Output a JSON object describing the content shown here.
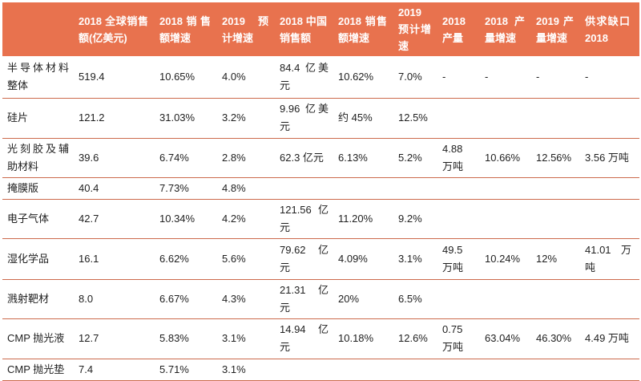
{
  "page": {
    "background": "#ffffff",
    "accent_color": "#e8724e",
    "separator_color": "#cc6a4c",
    "header_text_color": "#ffffff",
    "body_text_color": "#1f1f1f"
  },
  "table": {
    "columns": [
      "",
      "2018 全球销售额(亿美元)",
      "2018销售额增速",
      "2019 预计增速",
      "2018 中国销售额",
      "2018 销售额增速",
      "2019 预计增速",
      "2018 产量",
      "2018 产量增速",
      "2019产量增速",
      "供求缺口 2018"
    ],
    "rows": [
      {
        "label": "半导体材料整体",
        "cells": [
          "519.4",
          "10.65%",
          "4.0%",
          "84.4 亿美元",
          "10.62%",
          "7.0%",
          "-",
          "-",
          "-",
          "-"
        ]
      },
      {
        "label": "硅片",
        "cells": [
          "121.2",
          "31.03%",
          "3.2%",
          "9.96 亿美元",
          "约 45%",
          "12.5%",
          "",
          "",
          "",
          ""
        ]
      },
      {
        "label": "光刻胶及辅助材料",
        "cells": [
          "39.6",
          "6.74%",
          "2.8%",
          "62.3 亿元",
          "6.13%",
          "5.2%",
          "4.88 万吨",
          "10.66%",
          "12.56%",
          "3.56 万吨"
        ]
      },
      {
        "label": "掩膜版",
        "cells": [
          "40.4",
          "7.73%",
          "4.8%",
          "",
          "",
          "",
          "",
          "",
          "",
          ""
        ]
      },
      {
        "label": "电子气体",
        "cells": [
          "42.7",
          "10.34%",
          "4.2%",
          "121.56 亿元",
          "11.20%",
          "9.2%",
          "",
          "",
          "",
          ""
        ]
      },
      {
        "label": "湿化学品",
        "cells": [
          "16.1",
          "6.62%",
          "5.6%",
          "79.62 亿元",
          "4.09%",
          "3.1%",
          "49.5 万吨",
          "10.24%",
          "12%",
          "41.01 万吨"
        ]
      },
      {
        "label": "溅射靶材",
        "cells": [
          "8.0",
          "6.67%",
          "4.3%",
          "21.31 亿元",
          "20%",
          "6.5%",
          "",
          "",
          "",
          ""
        ]
      },
      {
        "label": "CMP 抛光液",
        "cells": [
          "12.7",
          "5.83%",
          "3.1%",
          "14.94 亿元",
          "10.18%",
          "12.6%",
          "0.75 万吨",
          "63.04%",
          "46.30%",
          "4.49 万吨"
        ]
      },
      {
        "label": "CMP 抛光垫",
        "cells": [
          "7.4",
          "5.71%",
          "3.1%",
          "",
          "",
          "",
          "",
          "",
          "",
          ""
        ]
      }
    ]
  }
}
